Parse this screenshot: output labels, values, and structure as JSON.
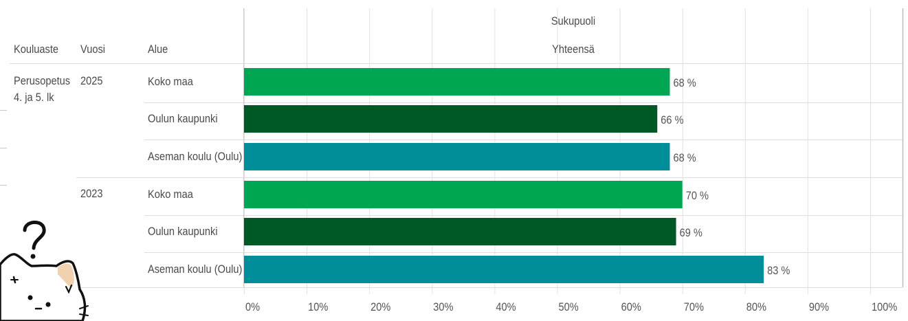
{
  "header": {
    "col_level": "Kouluaste",
    "col_year": "Vuosi",
    "col_area": "Alue",
    "group_title": "Sukupuoli",
    "group_sub": "Yhteensä"
  },
  "rows": {
    "level_line1": "Perusopetus",
    "level_line2": "4. ja 5. lk",
    "year_a": "2025",
    "year_b": "2023",
    "areas": [
      "Koko maa",
      "Oulun kaupunki",
      "Aseman koulu (Oulu)",
      "Koko maa",
      "Oulun kaupunki",
      "Aseman koulu (Oulu)"
    ]
  },
  "colors": {
    "koko_maa": "#00a651",
    "oulun_kaupunki": "#005826",
    "aseman_koulu": "#008e9b",
    "grid": "#e2e2e2",
    "value_text": "#555555"
  },
  "decor": {
    "cat_icon": "confused-cat-icon",
    "question_icon": "question-mark-icon"
  },
  "chart_data": {
    "type": "bar",
    "orientation": "horizontal",
    "title": "Sukupuoli",
    "subtitle": "Yhteensä",
    "categories": [
      "Koko maa",
      "Oulun kaupunki",
      "Aseman koulu (Oulu)",
      "Koko maa",
      "Oulun kaupunki",
      "Aseman koulu (Oulu)"
    ],
    "groups": [
      "2025",
      "2025",
      "2025",
      "2023",
      "2023",
      "2023"
    ],
    "values": [
      68,
      66,
      68,
      70,
      69,
      83
    ],
    "value_labels": [
      "68 %",
      "66 %",
      "68 %",
      "70 %",
      "69 %",
      "83 %"
    ],
    "bar_colors": [
      "#00a651",
      "#005826",
      "#008e9b",
      "#00a651",
      "#005826",
      "#008e9b"
    ],
    "xlim": [
      0,
      100
    ],
    "xticks": [
      "0%",
      "10%",
      "20%",
      "30%",
      "40%",
      "50%",
      "60%",
      "70%",
      "80%",
      "90%",
      "100%"
    ],
    "grid": true,
    "legend": "none"
  }
}
